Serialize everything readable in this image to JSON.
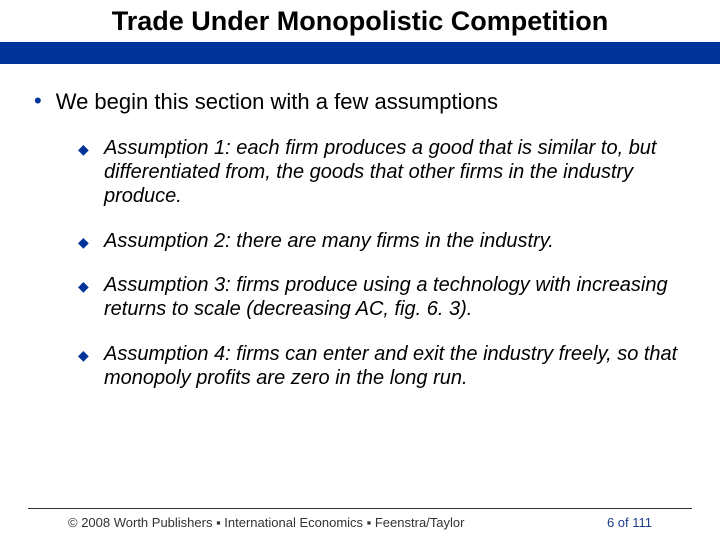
{
  "colors": {
    "accent_blue": "#003399",
    "text": "#000000",
    "footer_text": "#333333",
    "page_number": "#1a3d8f",
    "background": "#ffffff"
  },
  "header": {
    "title": "Trade Under Monopolistic Competition"
  },
  "body": {
    "intro_bullet": "We begin this section with a few assumptions",
    "assumptions": [
      "Assumption 1: each firm produces a good that is similar to, but differentiated from, the goods that other firms in the industry produce.",
      "Assumption 2: there are many firms in the industry.",
      "Assumption 3: firms produce using a technology with increasing returns to scale (decreasing AC, fig. 6. 3).",
      "Assumption 4: firms can enter and exit the industry freely, so that monopoly profits are zero in the long run."
    ]
  },
  "footer": {
    "copyright": "© 2008 Worth Publishers ▪ International Economics ▪ Feenstra/Taylor",
    "page": "6 of 111"
  }
}
